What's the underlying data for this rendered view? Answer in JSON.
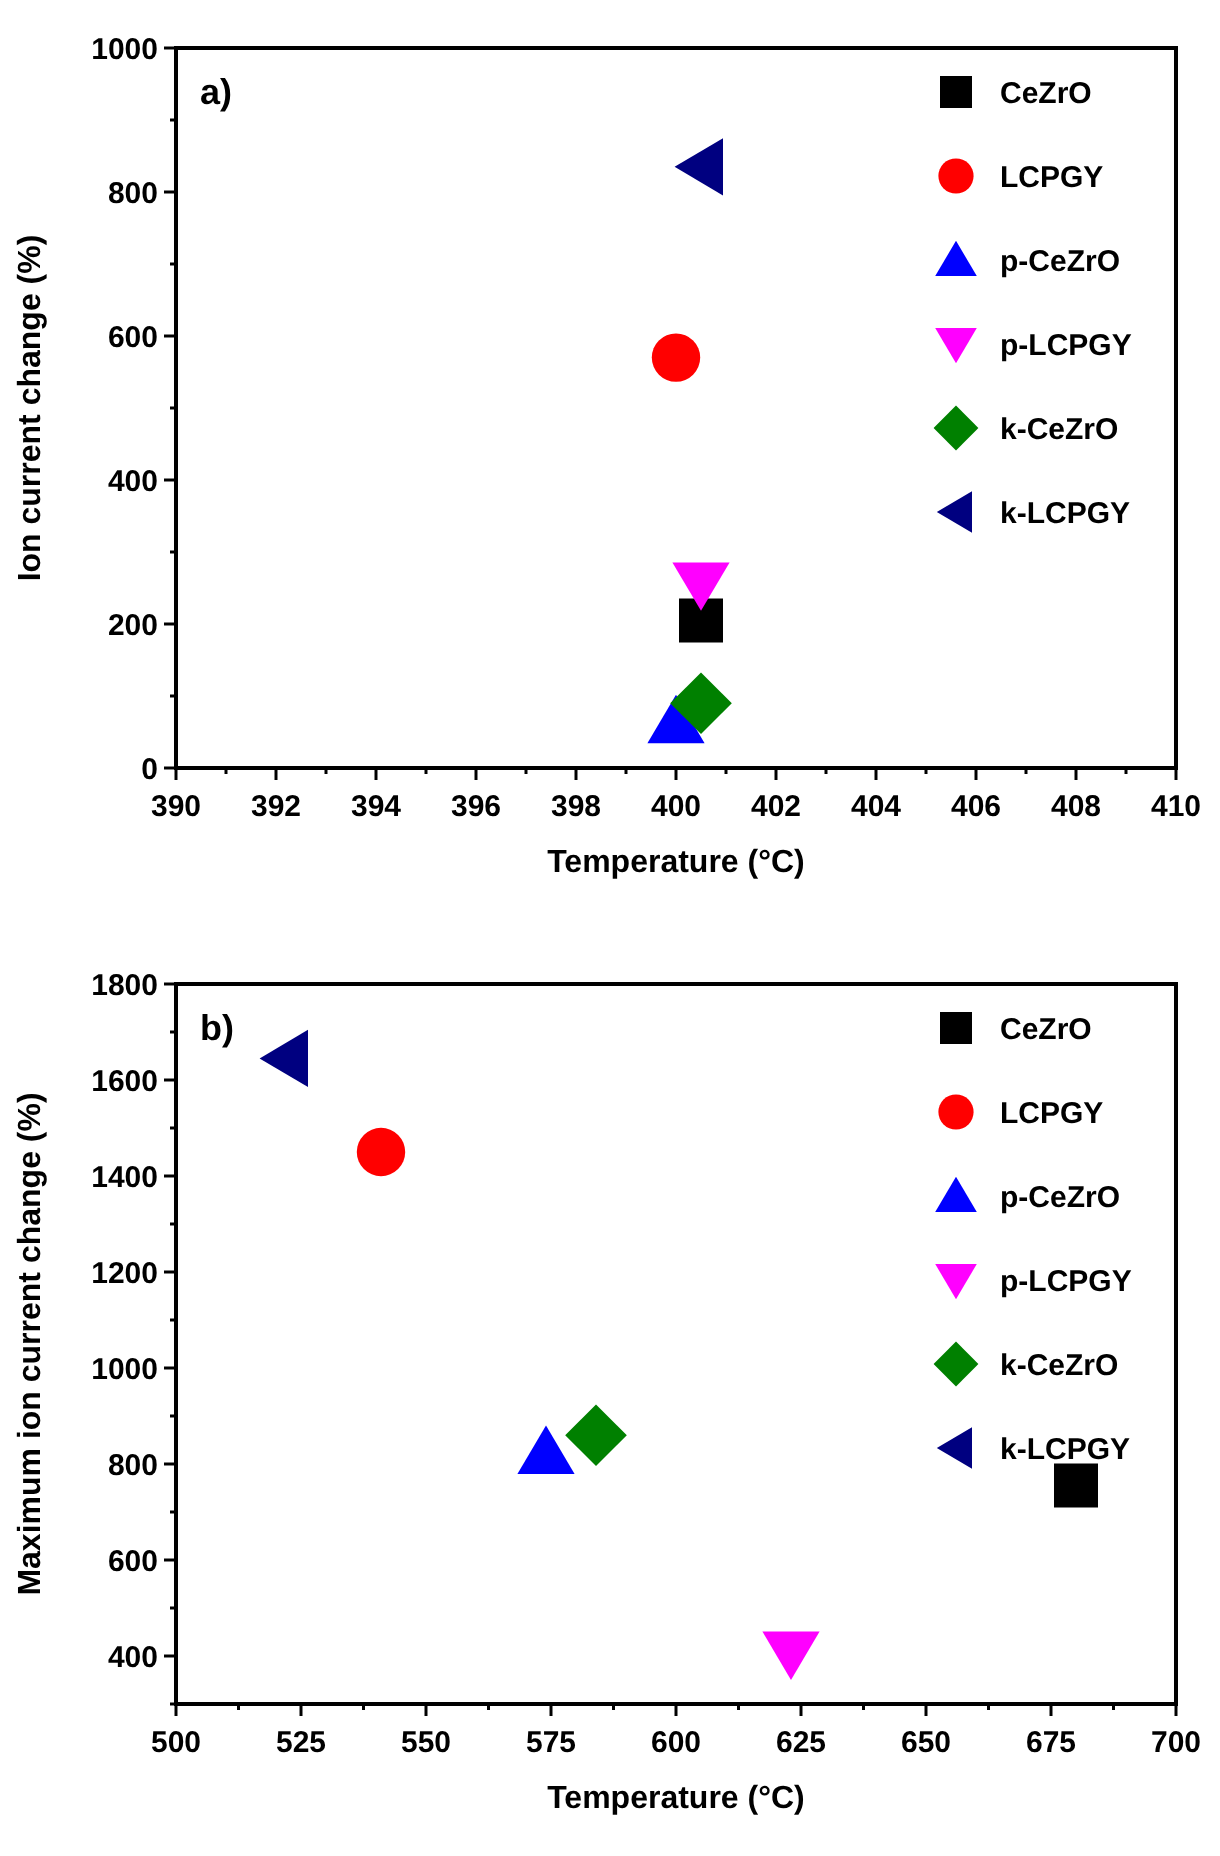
{
  "chart_data": [
    {
      "type": "scatter",
      "title": "a)",
      "xlabel": "Temperature (°C)",
      "ylabel": "Ion current change (%)",
      "xlim": [
        390,
        410
      ],
      "xticks": [
        390,
        392,
        394,
        396,
        398,
        400,
        402,
        404,
        406,
        408,
        410
      ],
      "ylim": [
        0,
        1000
      ],
      "yticks": [
        0,
        200,
        400,
        600,
        800,
        1000
      ],
      "legend": "top right",
      "grid": false,
      "series": [
        {
          "name": "CeZrO",
          "color": "#000000",
          "marker": "square",
          "x": [
            400.5
          ],
          "values": [
            205
          ]
        },
        {
          "name": "LCPGY",
          "color": "#ff0000",
          "marker": "circle",
          "x": [
            400
          ],
          "values": [
            570
          ]
        },
        {
          "name": "p-CeZrO",
          "color": "#0000ff",
          "marker": "triangle",
          "x": [
            400
          ],
          "values": [
            65
          ]
        },
        {
          "name": "p-LCPGY",
          "color": "#ff00ff",
          "marker": "triangle-down",
          "x": [
            400.5
          ],
          "values": [
            255
          ]
        },
        {
          "name": "k-CeZrO",
          "color": "#008000",
          "marker": "diamond",
          "x": [
            400.5
          ],
          "values": [
            90
          ]
        },
        {
          "name": "k-LCPGY",
          "color": "#000080",
          "marker": "triangle-left",
          "x": [
            400.5
          ],
          "values": [
            835
          ]
        }
      ]
    },
    {
      "type": "scatter",
      "title": "b)",
      "xlabel": "Temperature (°C)",
      "ylabel": "Maximum ion current change (%)",
      "xlim": [
        500,
        700
      ],
      "xticks": [
        500,
        525,
        550,
        575,
        600,
        625,
        650,
        675,
        700
      ],
      "ylim": [
        300,
        1800
      ],
      "yticks": [
        400,
        600,
        800,
        1000,
        1200,
        1400,
        1600,
        1800
      ],
      "legend": "top right",
      "grid": false,
      "series": [
        {
          "name": "CeZrO",
          "color": "#000000",
          "marker": "square",
          "x": [
            680
          ],
          "values": [
            755
          ]
        },
        {
          "name": "LCPGY",
          "color": "#ff0000",
          "marker": "circle",
          "x": [
            541
          ],
          "values": [
            1450
          ]
        },
        {
          "name": "p-CeZrO",
          "color": "#0000ff",
          "marker": "triangle",
          "x": [
            574
          ],
          "values": [
            825
          ]
        },
        {
          "name": "p-LCPGY",
          "color": "#ff00ff",
          "marker": "triangle-down",
          "x": [
            623
          ],
          "values": [
            405
          ]
        },
        {
          "name": "k-CeZrO",
          "color": "#008000",
          "marker": "diamond",
          "x": [
            584
          ],
          "values": [
            860
          ]
        },
        {
          "name": "k-LCPGY",
          "color": "#000080",
          "marker": "triangle-left",
          "x": [
            522
          ],
          "values": [
            1645
          ]
        }
      ]
    }
  ]
}
